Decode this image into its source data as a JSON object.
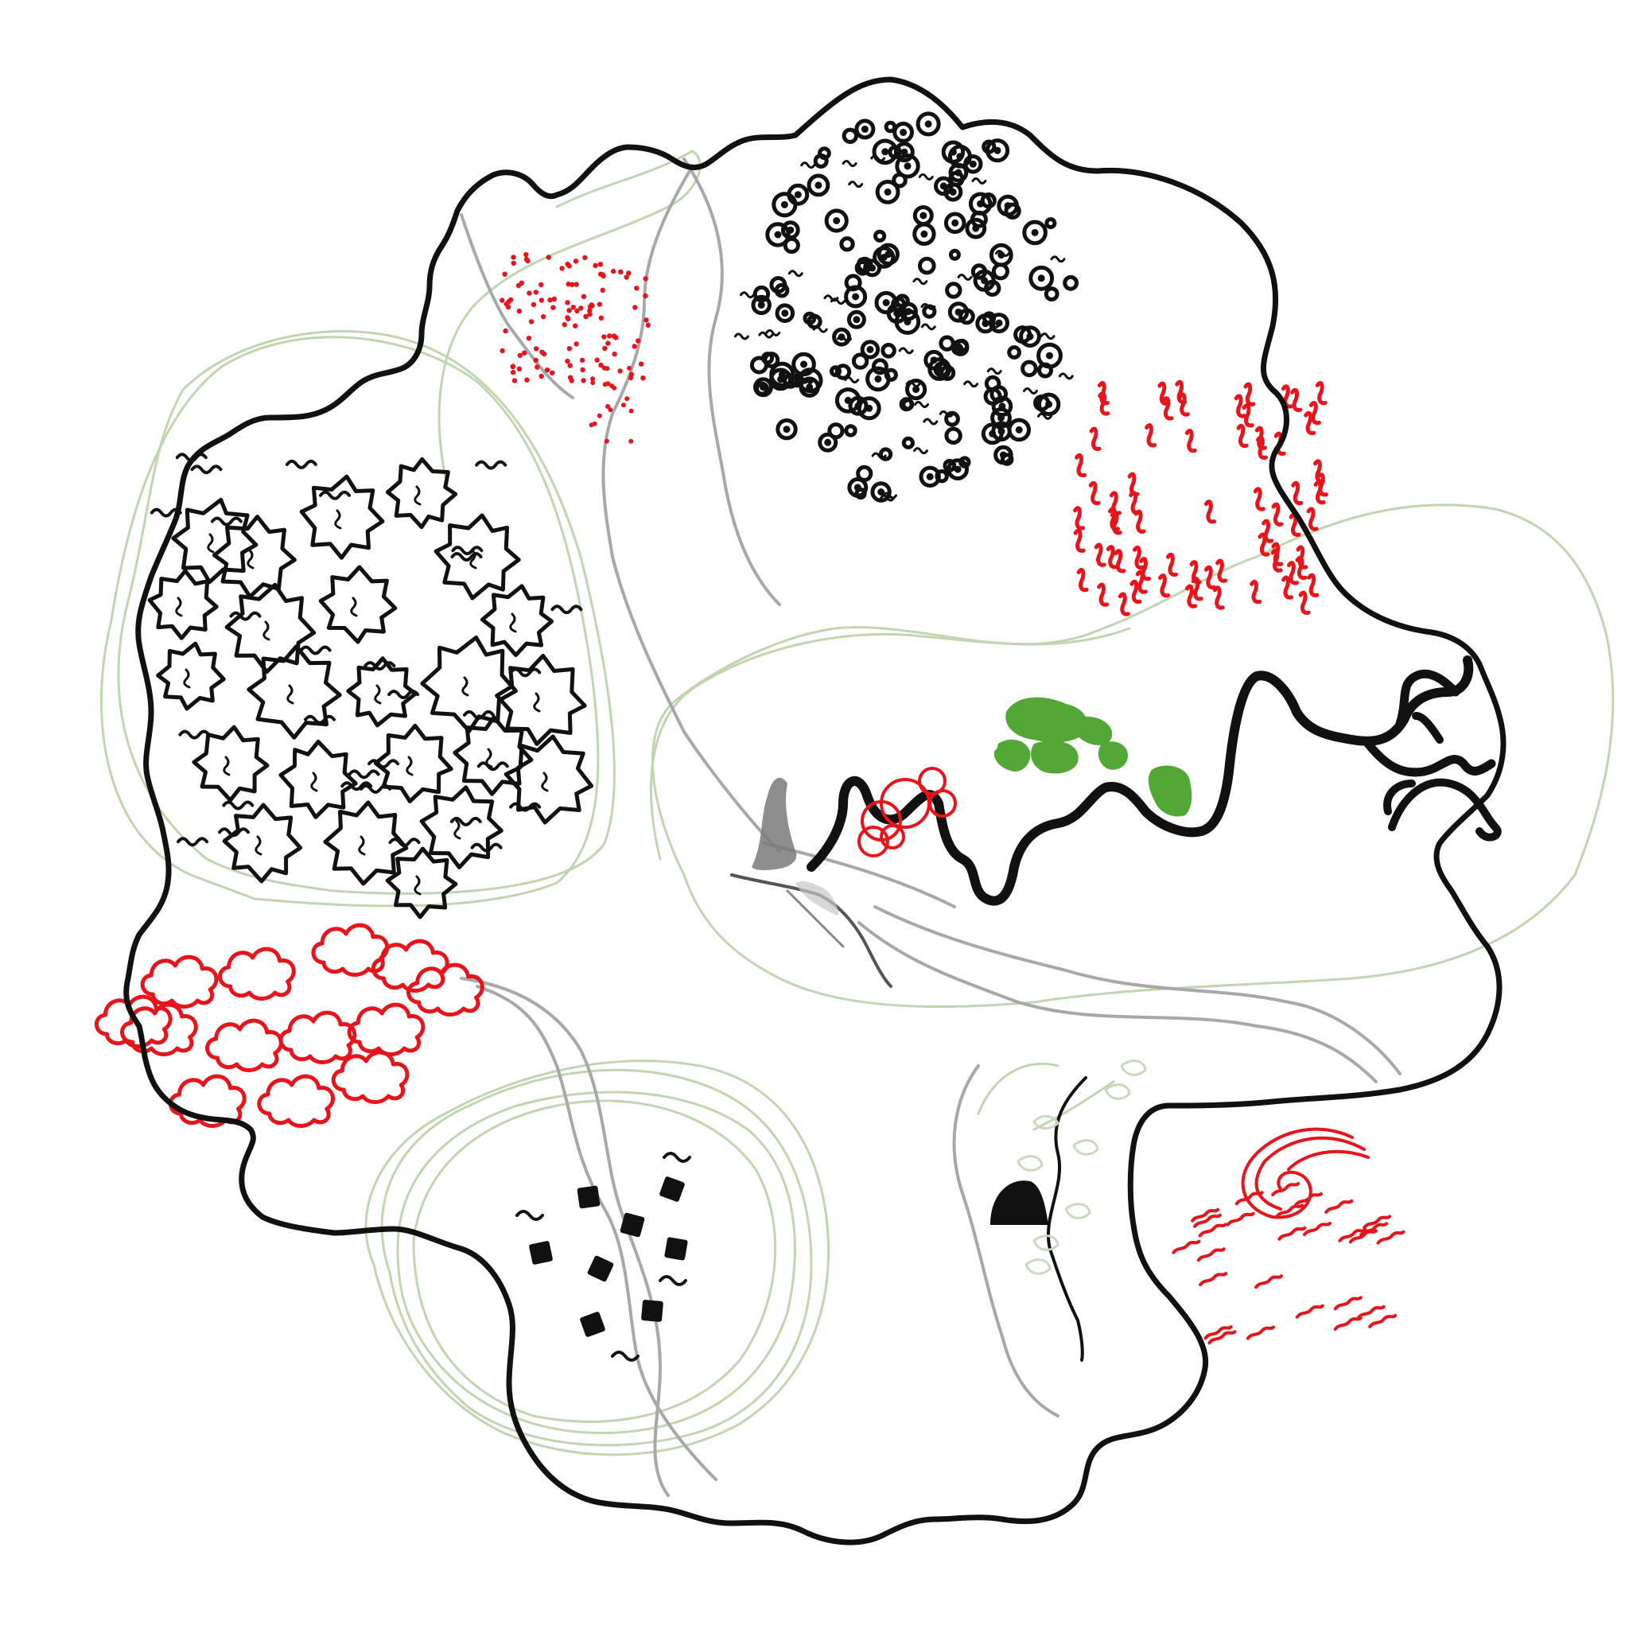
{
  "map": {
    "style": "hand-drawn fantasy island map",
    "labels": [],
    "colors": {
      "coastline": "#111111",
      "river": "#111111",
      "road": "#a8a8a8",
      "contour": "#b5cfa3",
      "red_features": "#e8141b",
      "green_fields": "#4aa32a",
      "mountain": "#7a7a7a"
    },
    "regions": [
      {
        "id": "star-forest",
        "icon": "spiky-tree-icon",
        "color": "black"
      },
      {
        "id": "round-tree-forest",
        "icon": "ring-tree-icon",
        "color": "black"
      },
      {
        "id": "red-dots-field",
        "icon": "dot-icon",
        "color": "red"
      },
      {
        "id": "red-grass-field",
        "icon": "wavy-grass-icon",
        "color": "red"
      },
      {
        "id": "red-cloud-trees",
        "icon": "cloud-tree-icon",
        "color": "red"
      },
      {
        "id": "green-fields",
        "icon": "green-patch-icon",
        "color": "green"
      },
      {
        "id": "black-houses",
        "icon": "square-house-icon",
        "color": "black"
      },
      {
        "id": "cave",
        "icon": "cave-icon",
        "color": "black"
      },
      {
        "id": "red-swirl-marsh",
        "icon": "swirl-icon",
        "color": "red"
      },
      {
        "id": "central-mountain",
        "icon": "mountain-icon",
        "color": "gray"
      },
      {
        "id": "red-circles-lake",
        "icon": "circle-icon",
        "color": "red"
      }
    ]
  }
}
